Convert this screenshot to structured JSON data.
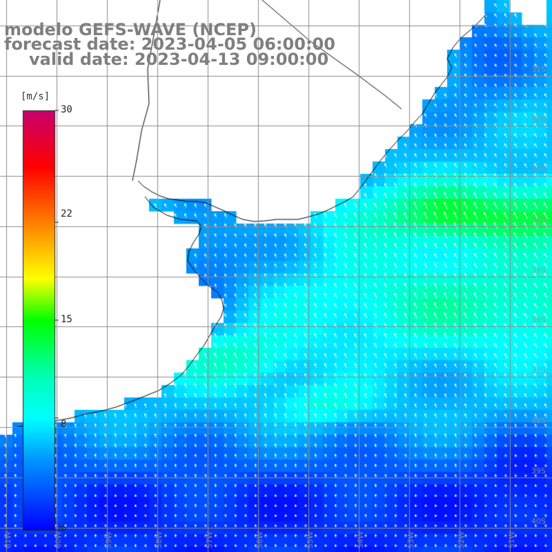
{
  "title": {
    "model": "modelo GEFS-WAVE (NCEP)",
    "forecast": "forecast date: 2023-04-05 06:00:00",
    "valid": "valid date: 2023-04-13 09:00:00"
  },
  "colorbar": {
    "unit": "[m/s]",
    "min": 0,
    "max": 30,
    "tick_labels": [
      "30",
      "22",
      "15",
      "8",
      "0"
    ],
    "tick_values": [
      30,
      22,
      15,
      8,
      0
    ],
    "colors": [
      "#0000ff",
      "#0096ff",
      "#00ffff",
      "#00ff00",
      "#ffff00",
      "#ff8000",
      "#ff0000",
      "#c8006e"
    ]
  },
  "map": {
    "region": "Rio de la Plata / Uruguay coast, South Atlantic",
    "lon_range": [
      -61,
      -50
    ],
    "lat_range": [
      -40,
      -30
    ],
    "lat_labels": [
      "31S",
      "32S",
      "33S",
      "34S",
      "35S",
      "36S",
      "37S",
      "38S",
      "39S",
      "40S"
    ],
    "lon_labels": [
      "61W",
      "60W",
      "59W",
      "58W",
      "57W",
      "56W",
      "55W",
      "54W",
      "53W",
      "52W",
      "51W"
    ],
    "field": "wind speed (m/s) with direction arrows",
    "land_color": "#ffffff",
    "coast_color": "#000000",
    "grid_color": "#8c8c8c"
  }
}
